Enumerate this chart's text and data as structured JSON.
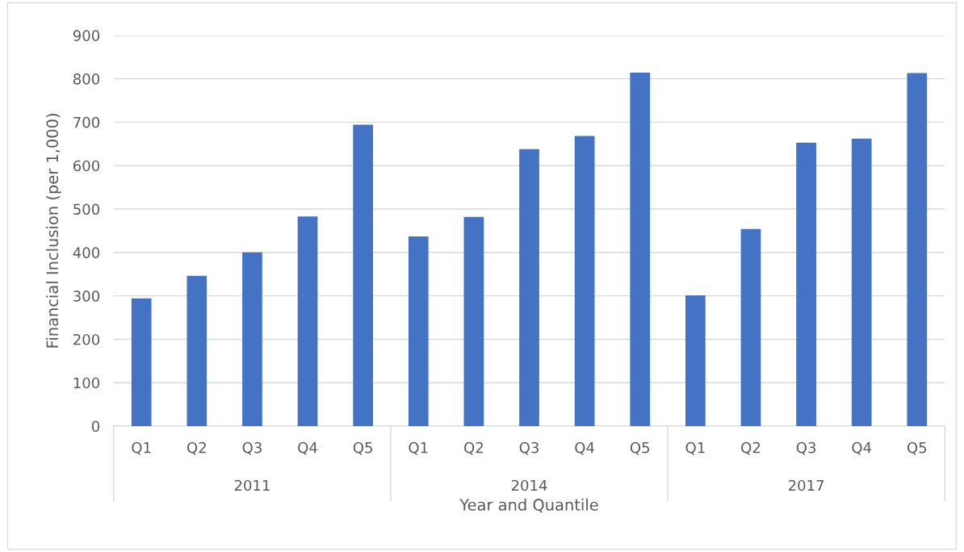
{
  "chart_data": {
    "type": "bar",
    "xlabel": "Year and Quantile",
    "ylabel": "Financial Inclusion (per 1,000)",
    "categories": [
      "Q1",
      "Q2",
      "Q3",
      "Q4",
      "Q5",
      "Q1",
      "Q2",
      "Q3",
      "Q4",
      "Q5",
      "Q1",
      "Q2",
      "Q3",
      "Q4",
      "Q5"
    ],
    "values": [
      294,
      346,
      400,
      483,
      694,
      437,
      482,
      638,
      668,
      814,
      301,
      454,
      653,
      662,
      813
    ],
    "color": "#4472c4",
    "annotations": [
      "2011",
      "2014",
      "2017"
    ],
    "ylim": [
      0,
      900
    ],
    "yticks": [
      0,
      100,
      200,
      300,
      400,
      500,
      600,
      700,
      800,
      900
    ],
    "grid": "y"
  }
}
